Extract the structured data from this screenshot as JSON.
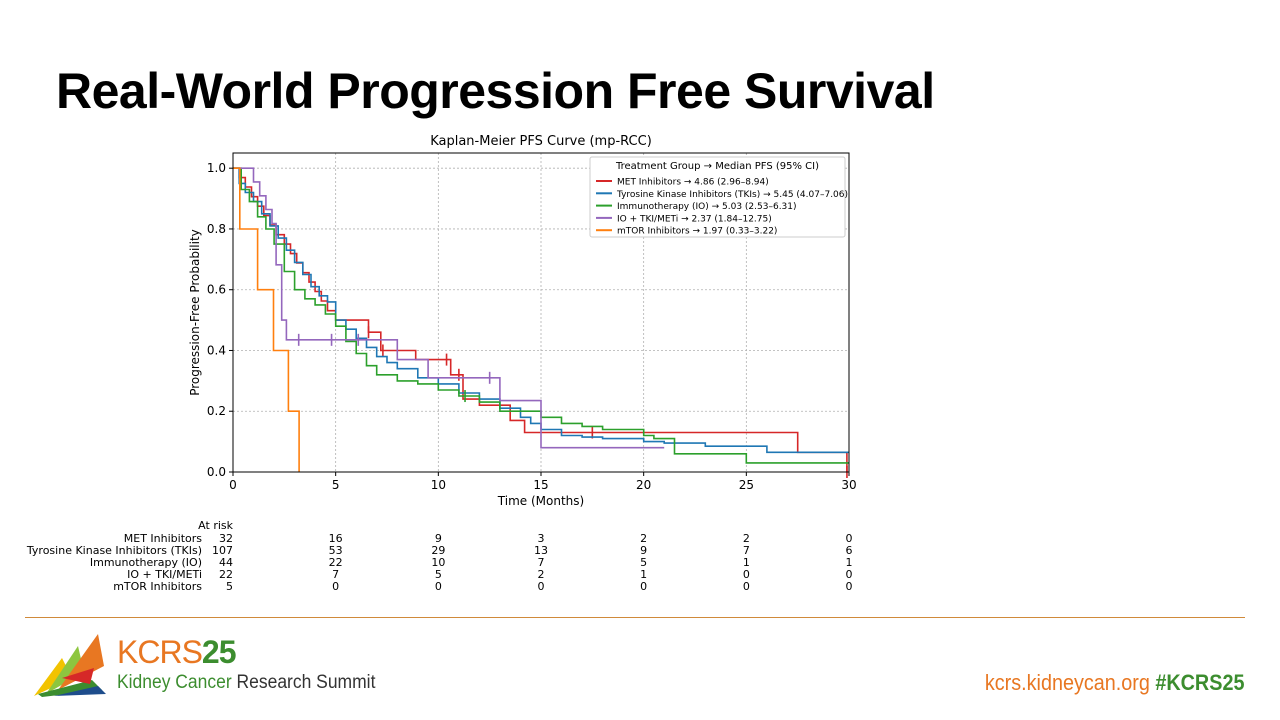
{
  "slide": {
    "title": "Real-World Progression Free Survival"
  },
  "chart_data": {
    "type": "line",
    "step": true,
    "title": "Kaplan-Meier PFS Curve (mp-RCC)",
    "xlabel": "Time (Months)",
    "ylabel": "Progression-Free Probability",
    "xlim": [
      0,
      30
    ],
    "ylim": [
      0,
      1.05
    ],
    "xticks": [
      0,
      5,
      10,
      15,
      20,
      25,
      30
    ],
    "yticks": [
      0.0,
      0.2,
      0.4,
      0.6,
      0.8,
      1.0
    ],
    "grid": true,
    "legend": {
      "title": "Treatment Group → Median PFS (95% CI)",
      "placement": "top-right"
    },
    "series": [
      {
        "name": "MET Inhibitors → 4.86 (2.96–8.94)",
        "color": "#d62728",
        "x": [
          0,
          0.3,
          0.6,
          0.9,
          1.2,
          1.5,
          1.8,
          2.1,
          2.5,
          2.8,
          3.1,
          3.4,
          3.7,
          4.0,
          4.3,
          4.6,
          5.0,
          5.6,
          6.6,
          7.2,
          8.0,
          8.9,
          10.6,
          11.2,
          12.0,
          13.5,
          14.2,
          15.2,
          16.0,
          17.5,
          27.5,
          29.9
        ],
        "y": [
          1.0,
          0.969,
          0.938,
          0.906,
          0.875,
          0.844,
          0.813,
          0.781,
          0.75,
          0.719,
          0.688,
          0.656,
          0.625,
          0.594,
          0.563,
          0.531,
          0.5,
          0.5,
          0.46,
          0.4,
          0.4,
          0.37,
          0.32,
          0.24,
          0.22,
          0.17,
          0.13,
          0.13,
          0.13,
          0.13,
          0.065,
          0.0
        ],
        "censor_x": [
          6.6,
          7.3,
          10.4,
          11.0,
          17.5,
          29.9
        ]
      },
      {
        "name": "Tyrosine Kinase Inhibitors (TKIs) → 5.45 (4.07–7.06)",
        "color": "#1f77b4",
        "x": [
          0,
          0.3,
          0.6,
          1.0,
          1.4,
          1.8,
          2.2,
          2.6,
          3.0,
          3.4,
          3.8,
          4.2,
          4.6,
          5.0,
          5.5,
          6.0,
          6.5,
          7.0,
          7.5,
          8.0,
          9.0,
          10.0,
          11.0,
          12.0,
          13.0,
          14.0,
          14.5,
          15.0,
          16.0,
          17.0,
          18.0,
          20.0,
          21.0,
          23.0,
          26.0,
          30.0
        ],
        "y": [
          1.0,
          0.95,
          0.92,
          0.89,
          0.85,
          0.81,
          0.77,
          0.73,
          0.69,
          0.65,
          0.61,
          0.58,
          0.56,
          0.5,
          0.47,
          0.44,
          0.41,
          0.38,
          0.36,
          0.34,
          0.31,
          0.29,
          0.26,
          0.24,
          0.21,
          0.18,
          0.16,
          0.14,
          0.12,
          0.115,
          0.11,
          0.1,
          0.095,
          0.085,
          0.065,
          0.065
        ],
        "censor_x": []
      },
      {
        "name": "Immunotherapy (IO) → 5.03 (2.53–6.31)",
        "color": "#2ca02c",
        "x": [
          0,
          0.4,
          0.8,
          1.2,
          1.6,
          2.0,
          2.5,
          3.0,
          3.5,
          4.0,
          4.5,
          5.0,
          5.5,
          6.0,
          6.5,
          7.0,
          8.0,
          9.0,
          10.0,
          11.0,
          12.0,
          13.0,
          14.0,
          15.0,
          16.0,
          17.0,
          18.0,
          20.0,
          20.5,
          21.5,
          25.0,
          30.0
        ],
        "y": [
          1.0,
          0.93,
          0.89,
          0.84,
          0.8,
          0.75,
          0.66,
          0.6,
          0.57,
          0.55,
          0.52,
          0.48,
          0.43,
          0.39,
          0.35,
          0.32,
          0.3,
          0.29,
          0.27,
          0.25,
          0.23,
          0.2,
          0.2,
          0.18,
          0.16,
          0.15,
          0.14,
          0.12,
          0.11,
          0.06,
          0.03,
          0.03
        ],
        "censor_x": [
          11.3
        ]
      },
      {
        "name": "IO + TKI/METi → 2.37 (1.84–12.75)",
        "color": "#9467bd",
        "x": [
          0,
          0.4,
          0.8,
          1.0,
          1.3,
          1.6,
          1.9,
          2.1,
          2.37,
          2.6,
          3.5,
          4.5,
          6.0,
          8.0,
          9.5,
          12.5,
          13.0,
          15.0,
          16.0,
          21.0
        ],
        "y": [
          1.0,
          1.0,
          1.0,
          0.955,
          0.909,
          0.864,
          0.818,
          0.682,
          0.5,
          0.435,
          0.435,
          0.435,
          0.435,
          0.37,
          0.31,
          0.31,
          0.235,
          0.08,
          0.08,
          0.08
        ],
        "censor_x": [
          3.2,
          4.8,
          6.1,
          12.5
        ]
      },
      {
        "name": "mTOR Inhibitors → 1.97 (0.33–3.22)",
        "color": "#ff7f0e",
        "x": [
          0,
          0.33,
          1.2,
          1.97,
          2.7,
          3.22
        ],
        "y": [
          1.0,
          0.8,
          0.6,
          0.4,
          0.2,
          0.0
        ],
        "censor_x": []
      }
    ],
    "at_risk": {
      "title": "At risk",
      "times": [
        0,
        5,
        10,
        15,
        20,
        25,
        30
      ],
      "rows": [
        {
          "label": "MET Inhibitors",
          "values": [
            "32",
            "16",
            "9",
            "3",
            "2",
            "2",
            "0"
          ]
        },
        {
          "label": "Tyrosine Kinase Inhibitors (TKIs)",
          "values": [
            "107",
            "53",
            "29",
            "13",
            "9",
            "7",
            "6"
          ]
        },
        {
          "label": "Immunotherapy (IO)",
          "values": [
            "44",
            "22",
            "10",
            "7",
            "5",
            "1",
            "1"
          ]
        },
        {
          "label": "IO + TKI/METi",
          "values": [
            "22",
            "7",
            "5",
            "2",
            "1",
            "0",
            "0"
          ]
        },
        {
          "label": "mTOR Inhibitors",
          "values": [
            "5",
            "0",
            "0",
            "0",
            "0",
            "0",
            "0"
          ]
        }
      ]
    }
  },
  "footer": {
    "logo_kcrs": "KCRS",
    "logo_year": "25",
    "logo_sub_1": "Kidney Cancer",
    "logo_sub_2": " Research Summit",
    "url": "kcrs.kidneycan.org",
    "hashtag": "#KCRS25",
    "colors": {
      "orange": "#e87722",
      "green": "#3c8d2f",
      "rule": "#d08a3a"
    },
    "logo_icon": "kcrs-chevron-logo-icon"
  }
}
